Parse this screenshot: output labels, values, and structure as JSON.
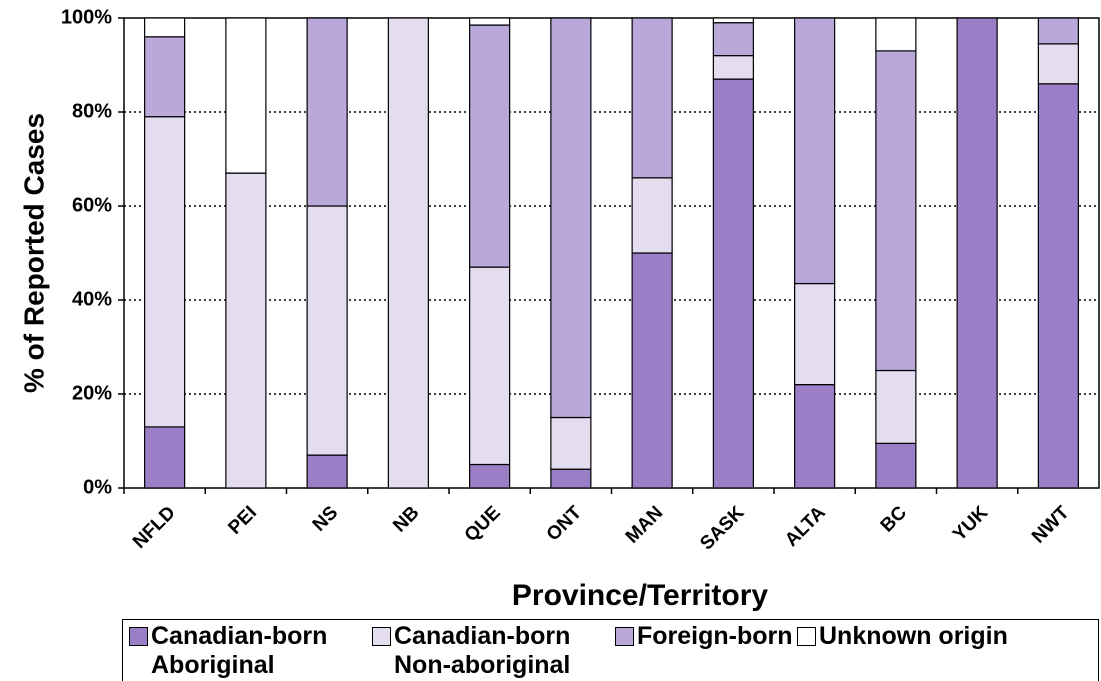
{
  "chart_data": {
    "type": "stacked_bar",
    "y_label": "% of Reported Cases",
    "x_label": "Province/Territory",
    "categories": [
      "NFLD",
      "PEI",
      "NS",
      "NB",
      "QUE",
      "ONT",
      "MAN",
      "SASK",
      "ALTA",
      "BC",
      "YUK",
      "NWT"
    ],
    "series": [
      {
        "name": "Canadian-born Aboriginal",
        "color": "#9b7fc6",
        "values": [
          13,
          0,
          7,
          0,
          5,
          4,
          50,
          87,
          22,
          9.5,
          100,
          86
        ]
      },
      {
        "name": "Canadian-born Non-aboriginal",
        "color": "#e4ddf0",
        "values": [
          66,
          67,
          53,
          100,
          42,
          11,
          16,
          5,
          21.5,
          15.5,
          0,
          8.5
        ]
      },
      {
        "name": "Foreign-born",
        "color": "#baa8da",
        "values": [
          17,
          0,
          40,
          0,
          51.5,
          85,
          34,
          7,
          56.5,
          68,
          0,
          5.5
        ]
      },
      {
        "name": "Unknown origin",
        "color": "#ffffff",
        "values": [
          4,
          33,
          0,
          0,
          1.5,
          0,
          0,
          1,
          0,
          7,
          0,
          0
        ]
      }
    ],
    "ylim": [
      0,
      100
    ],
    "yticks": [
      {
        "value": 0,
        "label": "0%"
      },
      {
        "value": 20,
        "label": "20%"
      },
      {
        "value": 40,
        "label": "40%"
      },
      {
        "value": 60,
        "label": "60%"
      },
      {
        "value": 80,
        "label": "80%"
      },
      {
        "value": 100,
        "label": "100%"
      }
    ],
    "grid": true
  }
}
